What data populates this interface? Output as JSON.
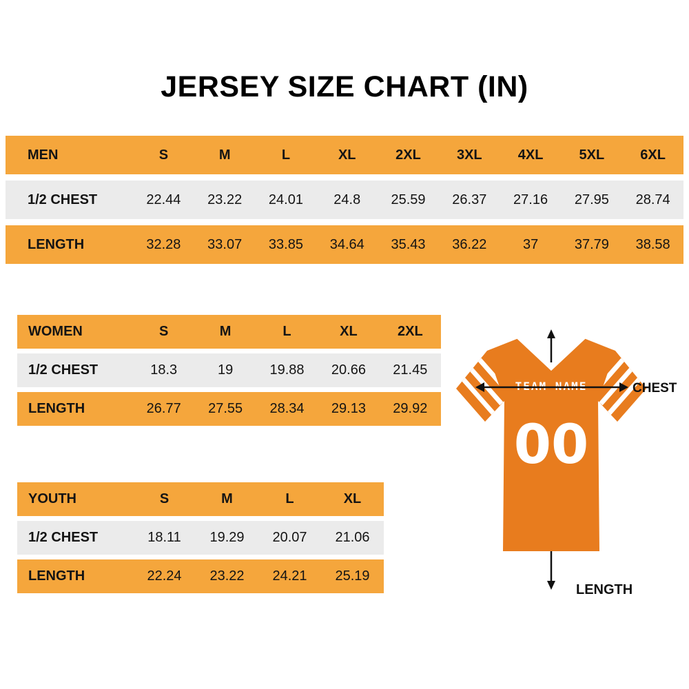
{
  "title": "JERSEY SIZE CHART (IN)",
  "chart_data": [
    {
      "type": "table",
      "name": "MEN",
      "columns": [
        "S",
        "M",
        "L",
        "XL",
        "2XL",
        "3XL",
        "4XL",
        "5XL",
        "6XL"
      ],
      "rows": [
        {
          "label": "1/2 CHEST",
          "values": [
            "22.44",
            "23.22",
            "24.01",
            "24.8",
            "25.59",
            "26.37",
            "27.16",
            "27.95",
            "28.74"
          ]
        },
        {
          "label": "LENGTH",
          "values": [
            "32.28",
            "33.07",
            "33.85",
            "34.64",
            "35.43",
            "36.22",
            "37",
            "37.79",
            "38.58"
          ]
        }
      ]
    },
    {
      "type": "table",
      "name": "WOMEN",
      "columns": [
        "S",
        "M",
        "L",
        "XL",
        "2XL"
      ],
      "rows": [
        {
          "label": "1/2 CHEST",
          "values": [
            "18.3",
            "19",
            "19.88",
            "20.66",
            "21.45"
          ]
        },
        {
          "label": "LENGTH",
          "values": [
            "26.77",
            "27.55",
            "28.34",
            "29.13",
            "29.92"
          ]
        }
      ]
    },
    {
      "type": "table",
      "name": "YOUTH",
      "columns": [
        "S",
        "M",
        "L",
        "XL"
      ],
      "rows": [
        {
          "label": "1/2 CHEST",
          "values": [
            "18.11",
            "19.29",
            "20.07",
            "21.06"
          ]
        },
        {
          "label": "LENGTH",
          "values": [
            "22.24",
            "23.22",
            "24.21",
            "25.19"
          ]
        }
      ]
    }
  ],
  "jersey": {
    "team_name": "TEAM NAME",
    "number": "00",
    "chest_label": "CHEST",
    "length_label": "LENGTH"
  },
  "colors": {
    "header_orange": "#F5A63C",
    "row_gray": "#EBEBEB",
    "jersey_orange": "#E87C1E",
    "arrow_black": "#111111"
  }
}
